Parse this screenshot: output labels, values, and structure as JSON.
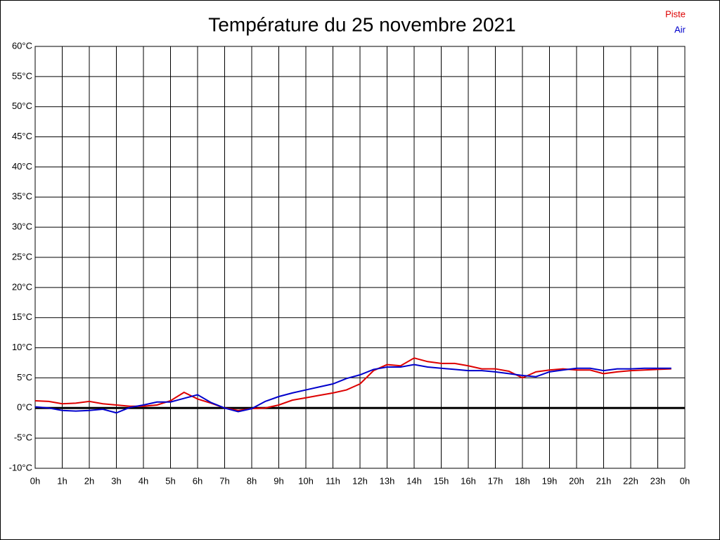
{
  "chart_data": {
    "type": "line",
    "title": "Température du 25 novembre 2021",
    "x": [
      0,
      0.5,
      1,
      1.5,
      2,
      2.5,
      3,
      3.5,
      4,
      4.5,
      5,
      5.5,
      6,
      6.5,
      7,
      7.5,
      8,
      8.5,
      9,
      9.5,
      10,
      10.5,
      11,
      11.5,
      12,
      12.5,
      13,
      13.5,
      14,
      14.5,
      15,
      15.5,
      16,
      16.5,
      17,
      17.5,
      18,
      18.5,
      19,
      19.5,
      20,
      20.5,
      21,
      21.5,
      22,
      22.5,
      23,
      23.5
    ],
    "series": [
      {
        "name": "Piste",
        "color": "#dd0000",
        "values": [
          1.2,
          1.1,
          0.7,
          0.8,
          1.1,
          0.7,
          0.5,
          0.3,
          0.3,
          0.5,
          1.2,
          2.6,
          1.5,
          0.8,
          0.0,
          -0.4,
          -0.1,
          0.0,
          0.5,
          1.3,
          1.7,
          2.1,
          2.5,
          3.0,
          4.0,
          6.2,
          7.2,
          7.0,
          8.3,
          7.7,
          7.4,
          7.4,
          7.0,
          6.5,
          6.5,
          6.1,
          5.0,
          6.0,
          6.3,
          6.5,
          6.3,
          6.3,
          5.7,
          6.0,
          6.2,
          6.3,
          6.4,
          6.5
        ]
      },
      {
        "name": "Air",
        "color": "#0000cc",
        "values": [
          0.2,
          0.0,
          -0.4,
          -0.5,
          -0.4,
          -0.2,
          -0.8,
          0.1,
          0.5,
          1.0,
          1.0,
          1.6,
          2.2,
          0.9,
          0.0,
          -0.6,
          -0.1,
          1.1,
          1.9,
          2.5,
          3.0,
          3.5,
          4.0,
          4.9,
          5.5,
          6.4,
          6.8,
          6.8,
          7.2,
          6.8,
          6.6,
          6.4,
          6.2,
          6.2,
          6.0,
          5.7,
          5.4,
          5.2,
          6.0,
          6.3,
          6.6,
          6.6,
          6.2,
          6.5,
          6.5,
          6.6,
          6.6,
          6.6
        ]
      }
    ],
    "xlim": [
      0,
      24
    ],
    "xticks": [
      {
        "value": 0,
        "label": "0h"
      },
      {
        "value": 1,
        "label": "1h"
      },
      {
        "value": 2,
        "label": "2h"
      },
      {
        "value": 3,
        "label": "3h"
      },
      {
        "value": 4,
        "label": "4h"
      },
      {
        "value": 5,
        "label": "5h"
      },
      {
        "value": 6,
        "label": "6h"
      },
      {
        "value": 7,
        "label": "7h"
      },
      {
        "value": 8,
        "label": "8h"
      },
      {
        "value": 9,
        "label": "9h"
      },
      {
        "value": 10,
        "label": "10h"
      },
      {
        "value": 11,
        "label": "11h"
      },
      {
        "value": 12,
        "label": "12h"
      },
      {
        "value": 13,
        "label": "13h"
      },
      {
        "value": 14,
        "label": "14h"
      },
      {
        "value": 15,
        "label": "15h"
      },
      {
        "value": 16,
        "label": "16h"
      },
      {
        "value": 17,
        "label": "17h"
      },
      {
        "value": 18,
        "label": "18h"
      },
      {
        "value": 19,
        "label": "19h"
      },
      {
        "value": 20,
        "label": "20h"
      },
      {
        "value": 21,
        "label": "21h"
      },
      {
        "value": 22,
        "label": "22h"
      },
      {
        "value": 23,
        "label": "23h"
      },
      {
        "value": 24,
        "label": "0h"
      }
    ],
    "ylim": [
      -10,
      60
    ],
    "yticks": [
      {
        "value": -10,
        "label": "-10°C"
      },
      {
        "value": -5,
        "label": "-5°C"
      },
      {
        "value": 0,
        "label": "0°C"
      },
      {
        "value": 5,
        "label": "5°C"
      },
      {
        "value": 10,
        "label": "10°C"
      },
      {
        "value": 15,
        "label": "15°C"
      },
      {
        "value": 20,
        "label": "20°C"
      },
      {
        "value": 25,
        "label": "25°C"
      },
      {
        "value": 30,
        "label": "30°C"
      },
      {
        "value": 35,
        "label": "35°C"
      },
      {
        "value": 40,
        "label": "40°C"
      },
      {
        "value": 45,
        "label": "45°C"
      },
      {
        "value": 50,
        "label": "50°C"
      },
      {
        "value": 55,
        "label": "55°C"
      },
      {
        "value": 60,
        "label": "60°C"
      }
    ],
    "grid": true,
    "legend": "top-right"
  }
}
